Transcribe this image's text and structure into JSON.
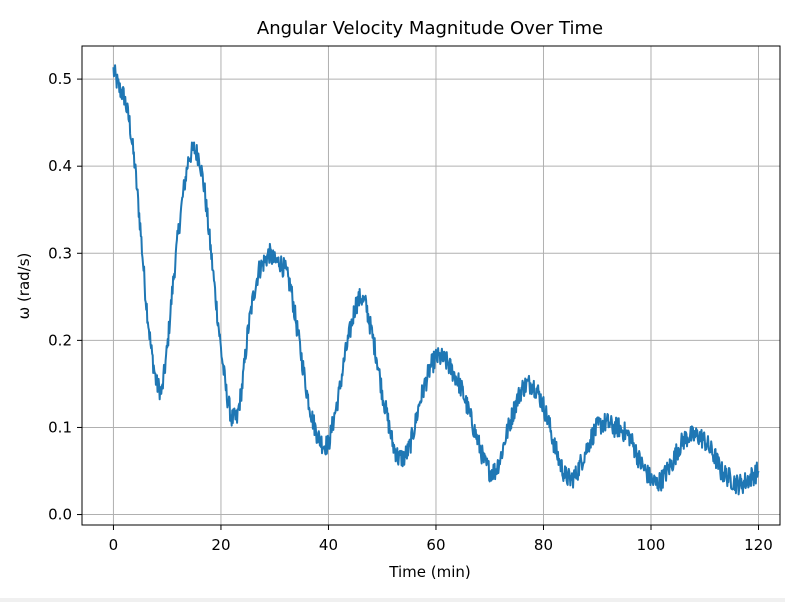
{
  "chart_data": {
    "type": "line",
    "title": "Angular Velocity Magnitude Over Time",
    "xlabel": "Time (min)",
    "ylabel": "ω (rad/s)",
    "xlim": [
      -5.85,
      124.0
    ],
    "ylim": [
      -0.012,
      0.538
    ],
    "xticks": [
      0,
      20,
      40,
      60,
      80,
      100,
      120
    ],
    "yticks": [
      0.0,
      0.1,
      0.2,
      0.3,
      0.4,
      0.5
    ],
    "xtick_labels": [
      "0",
      "20",
      "40",
      "60",
      "80",
      "100",
      "120"
    ],
    "ytick_labels": [
      "0.0",
      "0.1",
      "0.2",
      "0.3",
      "0.4",
      "0.5"
    ],
    "grid": true,
    "series": [
      {
        "color": "#1f77b4",
        "x": [
          0,
          1,
          2,
          3,
          4,
          5,
          6,
          7,
          8,
          9,
          10,
          11,
          12,
          13,
          14,
          15,
          16,
          17,
          18,
          19,
          20,
          21,
          22,
          23,
          24,
          25,
          26,
          27,
          28,
          29,
          30,
          31,
          32,
          33,
          34,
          35,
          36,
          37,
          38,
          39,
          40,
          41,
          42,
          43,
          44,
          45,
          46,
          47,
          48,
          49,
          50,
          51,
          52,
          53,
          54,
          55,
          56,
          57,
          58,
          59,
          60,
          61,
          62,
          63,
          64,
          65,
          66,
          67,
          68,
          69,
          70,
          71,
          72,
          73,
          74,
          75,
          76,
          77,
          78,
          79,
          80,
          81,
          82,
          83,
          84,
          85,
          86,
          87,
          88,
          89,
          90,
          91,
          92,
          93,
          94,
          95,
          96,
          97,
          98,
          99,
          100,
          101,
          102,
          103,
          104,
          105,
          106,
          107,
          108,
          109,
          110,
          111,
          112,
          113,
          114,
          115,
          116,
          117,
          118,
          119,
          120
        ],
        "y": [
          0.51,
          0.49,
          0.48,
          0.45,
          0.4,
          0.33,
          0.25,
          0.19,
          0.15,
          0.14,
          0.19,
          0.26,
          0.32,
          0.37,
          0.41,
          0.42,
          0.41,
          0.37,
          0.31,
          0.25,
          0.19,
          0.14,
          0.11,
          0.11,
          0.15,
          0.21,
          0.25,
          0.28,
          0.29,
          0.3,
          0.29,
          0.29,
          0.28,
          0.26,
          0.22,
          0.18,
          0.14,
          0.11,
          0.09,
          0.08,
          0.08,
          0.11,
          0.14,
          0.18,
          0.21,
          0.24,
          0.25,
          0.24,
          0.21,
          0.18,
          0.14,
          0.11,
          0.08,
          0.065,
          0.065,
          0.075,
          0.1,
          0.13,
          0.15,
          0.17,
          0.18,
          0.18,
          0.175,
          0.165,
          0.155,
          0.14,
          0.12,
          0.1,
          0.08,
          0.06,
          0.05,
          0.05,
          0.065,
          0.09,
          0.11,
          0.13,
          0.145,
          0.15,
          0.15,
          0.14,
          0.125,
          0.105,
          0.08,
          0.06,
          0.045,
          0.04,
          0.045,
          0.06,
          0.075,
          0.09,
          0.1,
          0.105,
          0.105,
          0.1,
          0.1,
          0.095,
          0.09,
          0.075,
          0.06,
          0.05,
          0.04,
          0.035,
          0.04,
          0.05,
          0.06,
          0.075,
          0.085,
          0.09,
          0.09,
          0.09,
          0.085,
          0.075,
          0.065,
          0.05,
          0.045,
          0.04,
          0.035,
          0.035,
          0.04,
          0.045,
          0.05
        ]
      }
    ]
  }
}
